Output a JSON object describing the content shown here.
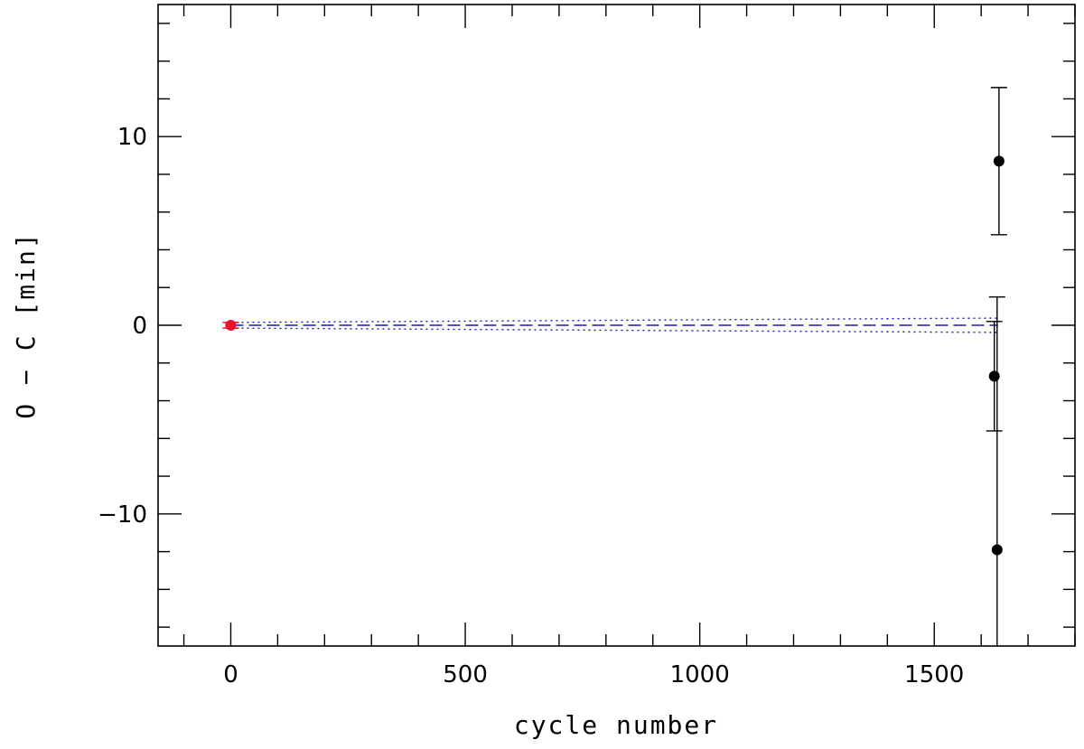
{
  "chart_data": {
    "type": "scatter",
    "xlabel": "cycle number",
    "ylabel": "O − C [min]",
    "xlim": [
      -155,
      1800
    ],
    "ylim": [
      -17,
      17
    ],
    "x_ticks_major": [
      0,
      500,
      1000,
      1500
    ],
    "x_tick_labels": [
      "0",
      "500",
      "1000",
      "1500"
    ],
    "x_ticks_minor_step": 100,
    "y_ticks_major": [
      -10,
      0,
      10
    ],
    "y_tick_labels": [
      "−10",
      "0",
      "10"
    ],
    "y_ticks_minor_step": 2,
    "grid": false,
    "series": [
      {
        "marker": "filled-circle",
        "color": "#e8102a",
        "points": [
          {
            "x": 0,
            "y": 0,
            "yerr_low": 0.15,
            "yerr_high": 0.15
          }
        ]
      },
      {
        "marker": "filled-circle",
        "color": "#000000",
        "points": [
          {
            "x": 1638,
            "y": 8.7,
            "yerr_low": 3.9,
            "yerr_high": 3.9
          },
          {
            "x": 1628,
            "y": -2.7,
            "yerr_low": 2.9,
            "yerr_high": 2.9
          },
          {
            "x": 1634,
            "y": -11.9,
            "yerr_low": 13.4,
            "yerr_high": 13.4
          }
        ]
      }
    ],
    "lines": [
      {
        "style": "dashed",
        "color": "#1a1ab4",
        "x_start": 0,
        "x_end": 1636,
        "y_start": 0,
        "y_end": 0
      },
      {
        "style": "dotted",
        "color": "#1a1ab4",
        "x_start": 0,
        "x_end": 1636,
        "y_start": 0.15,
        "y_end": 0.38
      },
      {
        "style": "dotted",
        "color": "#1a1ab4",
        "x_start": 0,
        "x_end": 1636,
        "y_start": -0.15,
        "y_end": -0.38
      }
    ]
  }
}
